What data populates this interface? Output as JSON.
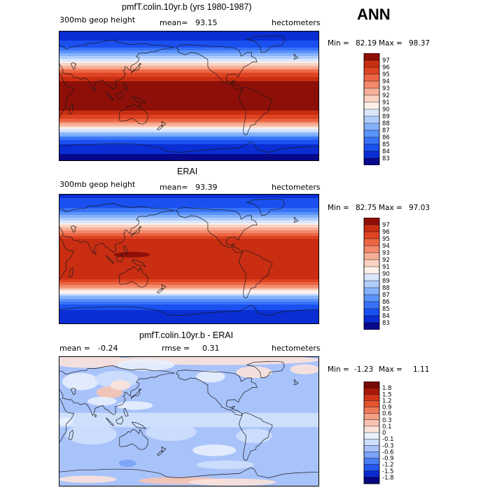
{
  "header": {
    "season": "ANN"
  },
  "colors": {
    "abs_scale": [
      "#08088a",
      "#0a2ed4",
      "#1a50f0",
      "#3772f7",
      "#5a93f9",
      "#84b1fa",
      "#b0cdfb",
      "#d9e6fc",
      "#fdf1ea",
      "#fbd2c2",
      "#f7af97",
      "#f38a6c",
      "#ec6644",
      "#de4322",
      "#c92e12",
      "#8e0f08"
    ],
    "diff_scale": [
      "#05057f",
      "#0a2bcf",
      "#2456ef",
      "#4a7df5",
      "#7aa2f8",
      "#a8c2fa",
      "#cedffc",
      "#e8f0fd",
      "#fbe3da",
      "#f8c4b0",
      "#f3a084",
      "#ee7b5a",
      "#e4552f",
      "#d03418",
      "#a8170a",
      "#790a05"
    ]
  },
  "chart_data": [
    {
      "type": "heatmap",
      "title": "pmfT.colin.10yr.b (yrs 1980-1987)",
      "subtitle": {
        "field": "300mb geop height",
        "mean_label": "mean=",
        "mean": "93.15",
        "units": "hectometers"
      },
      "min_label": "Min =",
      "min": "82.19",
      "max_label": "Max =",
      "max": "98.37",
      "colorbar_levels": [
        "97",
        "96",
        "95",
        "94",
        "93",
        "92",
        "91",
        "90",
        "89",
        "88",
        "87",
        "86",
        "85",
        "84",
        "83"
      ],
      "lat_profile": {
        "lat": [
          90,
          70,
          60,
          50,
          40,
          30,
          20,
          0,
          -20,
          -30,
          -40,
          -50,
          -60,
          -70,
          -90
        ],
        "value": [
          83,
          84.5,
          86.5,
          89.5,
          92.5,
          95.5,
          97.2,
          97.5,
          97.2,
          95.5,
          92.5,
          88.5,
          85,
          83.5,
          82.5
        ]
      }
    },
    {
      "type": "heatmap",
      "title": "ERAI",
      "subtitle": {
        "field": "300mb geop height",
        "mean_label": "mean=",
        "mean": "93.39",
        "units": "hectometers"
      },
      "min_label": "Min =",
      "min": "82.75",
      "max_label": "Max =",
      "max": "97.03",
      "colorbar_levels": [
        "97",
        "96",
        "95",
        "94",
        "93",
        "92",
        "91",
        "90",
        "89",
        "88",
        "87",
        "86",
        "85",
        "84",
        "83"
      ],
      "lat_profile": {
        "lat": [
          90,
          70,
          60,
          50,
          40,
          30,
          20,
          0,
          -20,
          -30,
          -40,
          -50,
          -60,
          -70,
          -90
        ],
        "value": [
          83.5,
          85,
          87,
          90,
          93,
          95.7,
          96.8,
          96.9,
          96.8,
          95.7,
          92.8,
          88.5,
          85.5,
          84,
          83
        ]
      }
    },
    {
      "type": "heatmap",
      "title": "pmfT.colin.10yr.b - ERAI",
      "subtitle": {
        "mean_label": "mean =",
        "mean": "-0.24",
        "rmse_label": "rmse =",
        "rmse": "0.31",
        "units": "hectometers"
      },
      "min_label": "Min =",
      "min": "-1.23",
      "max_label": "Max =",
      "max": "1.11",
      "colorbar_levels": [
        "1.8",
        "1.5",
        "1.2",
        "0.9",
        "0.6",
        "0.3",
        "0.1",
        "0",
        "-0.1",
        "-0.3",
        "-0.6",
        "-0.9",
        "-1.2",
        "-1.5",
        "-1.8"
      ]
    }
  ]
}
